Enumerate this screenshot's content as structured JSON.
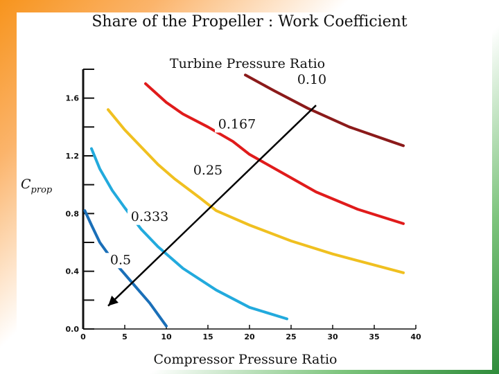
{
  "colors": {
    "frame_orange": "#f7941d",
    "frame_green": "#2e8b3a",
    "series": [
      "#8b1a1a",
      "#e01b1b",
      "#f0c020",
      "#22aadd",
      "#1a6fb8"
    ],
    "arrow": "#000000"
  },
  "chart_data": {
    "type": "line",
    "title": "Share of the Propeller : Work Coefficient",
    "subtitle": "Turbine Pressure Ratio",
    "xlabel": "Compressor Pressure Ratio",
    "ylabel_main": "C",
    "ylabel_sub": "prop",
    "xlim": [
      0,
      40
    ],
    "ylim": [
      0,
      1.8
    ],
    "x_ticks": [
      0,
      5,
      10,
      15,
      20,
      25,
      30,
      35,
      40
    ],
    "x_tick_labels": [
      "0",
      "5",
      "10",
      "15",
      "20",
      "25",
      "30",
      "35",
      "40"
    ],
    "y_ticks": [
      0.0,
      0.4,
      0.8,
      1.2,
      1.6
    ],
    "y_tick_labels": [
      "0.0",
      "0.4",
      "0.8",
      "1.2",
      "1.6"
    ],
    "series": [
      {
        "name": "0.10",
        "x": [
          19.5,
          23,
          27,
          32,
          37,
          38.5
        ],
        "y": [
          1.76,
          1.65,
          1.53,
          1.4,
          1.3,
          1.27
        ]
      },
      {
        "name": "0.167",
        "x": [
          7.5,
          10,
          12,
          15,
          18,
          20,
          24,
          28,
          33,
          38.5
        ],
        "y": [
          1.7,
          1.57,
          1.49,
          1.4,
          1.3,
          1.21,
          1.08,
          0.95,
          0.83,
          0.73
        ]
      },
      {
        "name": "0.25",
        "x": [
          3,
          5,
          7,
          9,
          11,
          14,
          16,
          20,
          25,
          30,
          38.5
        ],
        "y": [
          1.52,
          1.38,
          1.26,
          1.14,
          1.04,
          0.91,
          0.82,
          0.72,
          0.61,
          0.52,
          0.39
        ]
      },
      {
        "name": "0.333",
        "x": [
          1,
          2,
          3.5,
          5,
          7,
          9,
          12,
          16,
          20,
          24.5
        ],
        "y": [
          1.25,
          1.11,
          0.96,
          0.84,
          0.69,
          0.57,
          0.42,
          0.27,
          0.15,
          0.07
        ]
      },
      {
        "name": "0.5",
        "x": [
          0.2,
          1,
          2,
          3.5,
          5,
          6.5,
          8,
          9,
          10
        ],
        "y": [
          0.82,
          0.72,
          0.6,
          0.48,
          0.38,
          0.28,
          0.18,
          0.1,
          0.02
        ]
      }
    ],
    "labels": [
      {
        "text": "0.10",
        "x": 27.5,
        "y": 1.7
      },
      {
        "text": "0.167",
        "x": 18.5,
        "y": 1.39
      },
      {
        "text": "0.25",
        "x": 15,
        "y": 1.07
      },
      {
        "text": "0.333",
        "x": 8,
        "y": 0.75
      },
      {
        "text": "0.5",
        "x": 4.5,
        "y": 0.45
      }
    ],
    "arrow": {
      "from": {
        "x": 28,
        "y": 1.55
      },
      "to": {
        "x": 3,
        "y": 0.16
      }
    }
  }
}
